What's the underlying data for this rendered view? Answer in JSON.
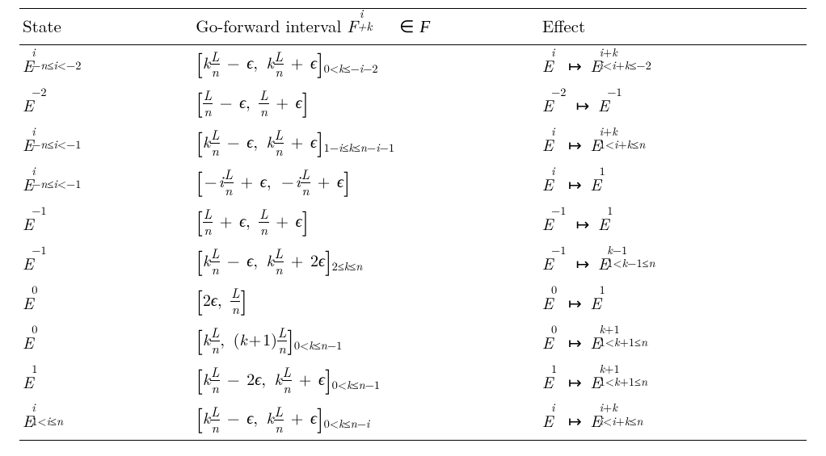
{
  "headers": {
    "state": "State",
    "interval_prefix": "Go-forward interval ",
    "interval_F": "F",
    "interval_sup": "i",
    "interval_sub": "+k",
    "interval_in": " ∈ ",
    "interval_cal": "F",
    "effect": "Effect"
  },
  "rows": [
    {
      "s_base": "E",
      "s_sup": "i",
      "s_sub": "−n≤i<−2",
      "br_l": "[",
      "int_body": "k(L/n) − ϵ, k(L/n) + ϵ",
      "br_r": "]",
      "trail": "0<k≤−i−2",
      "e_l_base": "E",
      "e_l_sup": "i",
      "e_l_sub": "",
      "e_r_base": "E",
      "e_r_sup": "i+k",
      "e_r_sub": "i<i+k≤−2"
    },
    {
      "s_base": "E",
      "s_sup": "−2",
      "s_sub": "",
      "br_l": "[",
      "int_body": "(L/n) − ϵ, (L/n) + ϵ",
      "br_r": "]",
      "trail": "",
      "e_l_base": "E",
      "e_l_sup": "−2",
      "e_l_sub": "",
      "e_r_base": "E",
      "e_r_sup": "−1",
      "e_r_sub": ""
    },
    {
      "s_base": "E",
      "s_sup": "i",
      "s_sub": "−n≤i<−1",
      "br_l": "[",
      "int_body": "k(L/n) − ϵ, k(L/n) + ϵ",
      "br_r": "]",
      "trail": "1−i≤k≤n−i−1",
      "e_l_base": "E",
      "e_l_sup": "i",
      "e_l_sub": "",
      "e_r_base": "E",
      "e_r_sup": "i+k",
      "e_r_sub": "1<i+k≤n"
    },
    {
      "s_base": "E",
      "s_sup": "i",
      "s_sub": "−n≤i<−1",
      "br_l": "[",
      "int_body": "−i(L/n) + ϵ, −i(L/n) + ϵ",
      "br_r": "]",
      "trail": "",
      "e_l_base": "E",
      "e_l_sup": "i",
      "e_l_sub": "",
      "e_r_base": "E",
      "e_r_sup": "1",
      "e_r_sub": ""
    },
    {
      "s_base": "E",
      "s_sup": "−1",
      "s_sub": "",
      "br_l": "[",
      "int_body": "(L/n) + ϵ, (L/n) + ϵ",
      "br_r": "]",
      "trail": "",
      "e_l_base": "E",
      "e_l_sup": "−1",
      "e_l_sub": "",
      "e_r_base": "E",
      "e_r_sup": "1",
      "e_r_sub": ""
    },
    {
      "s_base": "E",
      "s_sup": "−1",
      "s_sub": "",
      "br_l": "[",
      "int_body": "k(L/n) − ϵ, k(L/n) + 2ϵ",
      "br_r": "]",
      "trail": "2≤k≤n",
      "e_l_base": "E",
      "e_l_sup": "−1",
      "e_l_sub": "",
      "e_r_base": "E",
      "e_r_sup": "k−1",
      "e_r_sub": "1<k−1≤n"
    },
    {
      "s_base": "E",
      "s_sup": "0",
      "s_sub": "",
      "br_l": "[",
      "int_body": "2ϵ, (L/n)",
      "br_r": "]",
      "trail": "",
      "e_l_base": "E",
      "e_l_sup": "0",
      "e_l_sub": "",
      "e_r_base": "E",
      "e_r_sup": "1",
      "e_r_sub": ""
    },
    {
      "s_base": "E",
      "s_sup": "0",
      "s_sub": "",
      "br_l": "[",
      "int_body": "k(L/n), (k+1)(L/n)",
      "br_r": "]",
      "trail": "0<k≤n−1",
      "e_l_base": "E",
      "e_l_sup": "0",
      "e_l_sub": "",
      "e_r_base": "E",
      "e_r_sup": "k+1",
      "e_r_sub": "1<k+1≤n"
    },
    {
      "s_base": "E",
      "s_sup": "1",
      "s_sub": "",
      "br_l": "[",
      "int_body": "k(L/n) − 2ϵ, k(L/n) + ϵ",
      "br_r": "]",
      "trail": "0<k≤n−1",
      "e_l_base": "E",
      "e_l_sup": "1",
      "e_l_sub": "",
      "e_r_base": "E",
      "e_r_sup": "k+1",
      "e_r_sub": "1<k+1≤n"
    },
    {
      "s_base": "E",
      "s_sup": "i",
      "s_sub": "1<i≤n",
      "br_l": "[",
      "int_body": "k(L/n) − ϵ, k(L/n) + ϵ",
      "br_r": "]",
      "trail": "0<k≤n−i",
      "e_l_base": "E",
      "e_l_sup": "i",
      "e_l_sub": "",
      "e_r_base": "E",
      "e_r_sup": "i+k",
      "e_r_sub": "i<i+k≤n"
    }
  ],
  "frac": {
    "num": "L",
    "den": "n"
  },
  "mapsto": "↦",
  "epsilon": "ϵ"
}
